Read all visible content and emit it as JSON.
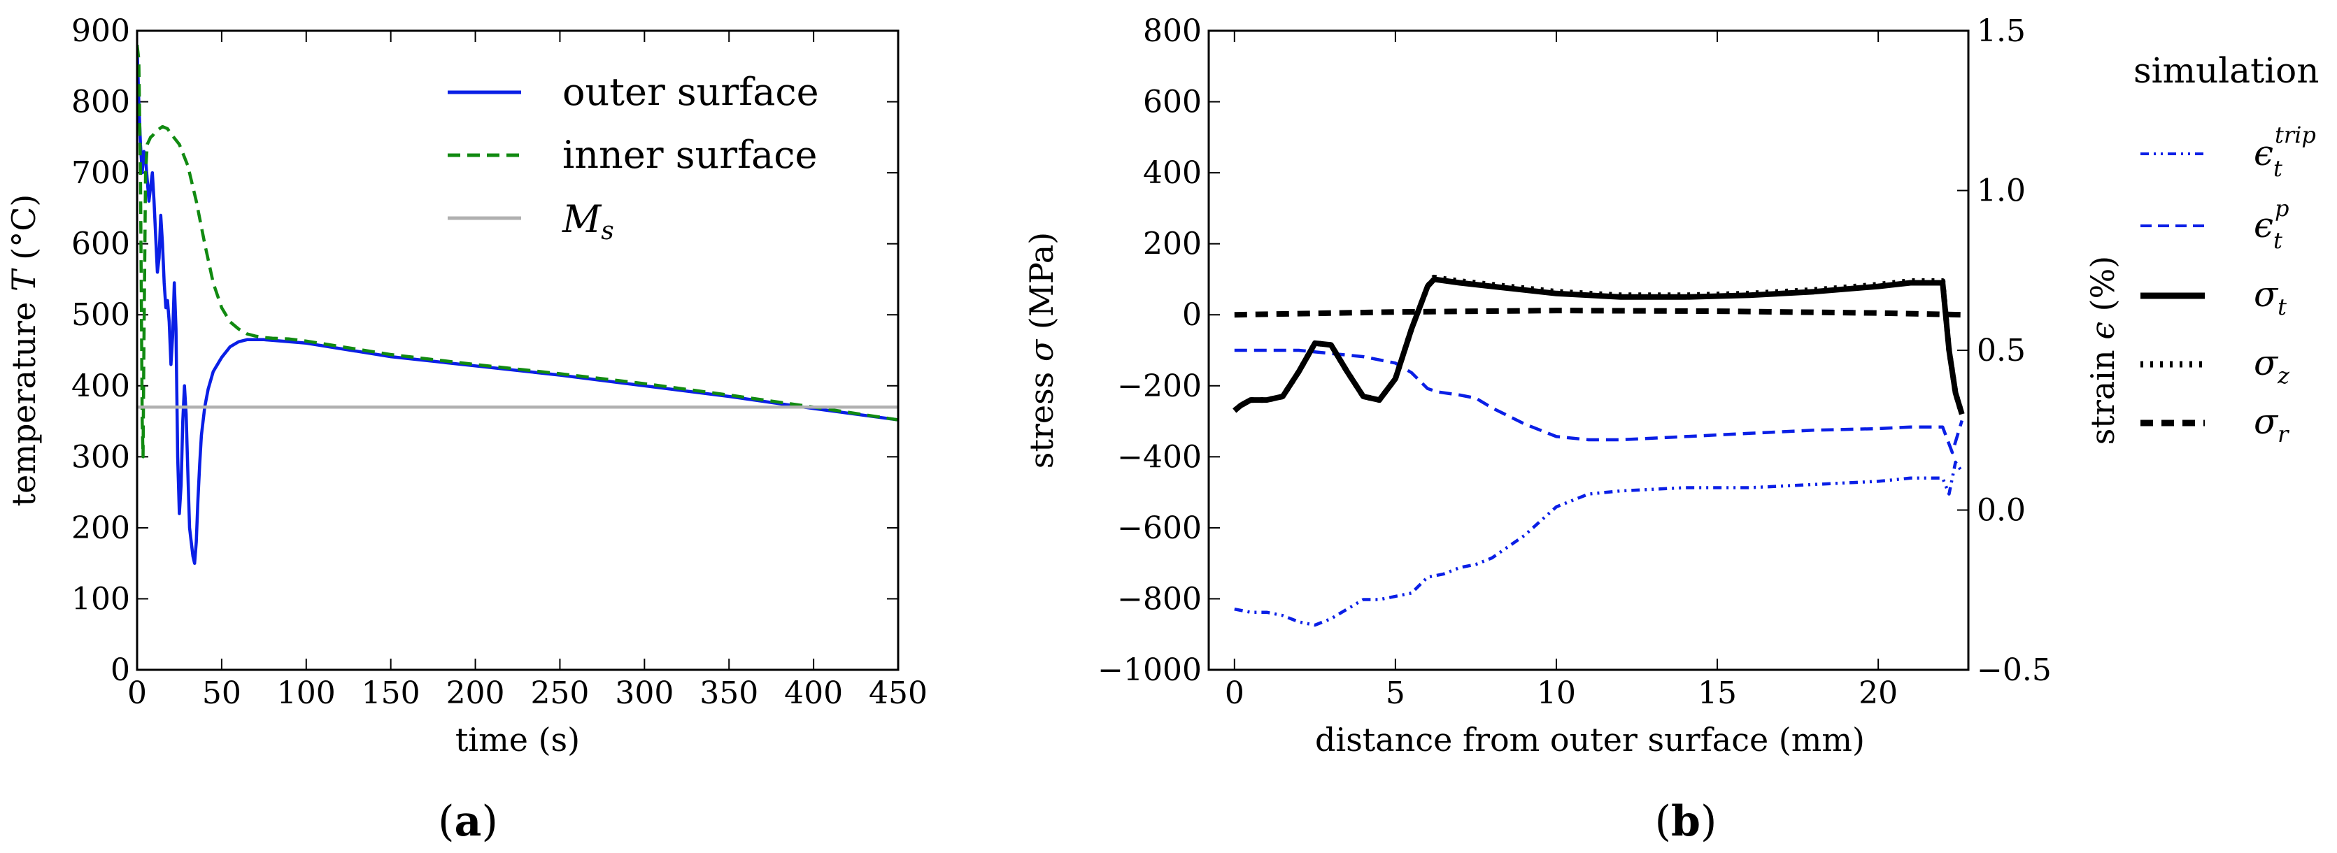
{
  "chart_data": [
    {
      "type": "line",
      "panel": "(a)",
      "panel_letter": "a",
      "xlabel": "time (s)",
      "ylabel_prefix": "temperature ",
      "ylabel_var": "T",
      "ylabel_suffix": " (°C)",
      "xlim": [
        0,
        450
      ],
      "ylim": [
        0,
        900
      ],
      "xticks": [
        "0",
        "50",
        "100",
        "150",
        "200",
        "250",
        "300",
        "350",
        "400",
        "450"
      ],
      "yticks": [
        "0",
        "100",
        "200",
        "300",
        "400",
        "500",
        "600",
        "700",
        "800",
        "900"
      ],
      "legend_position": "top-right",
      "series": [
        {
          "name": "outer surface",
          "color": "#0a1fe6",
          "style": "solid",
          "x": [
            0,
            1,
            2,
            3,
            4,
            5,
            6,
            7,
            8,
            9,
            10,
            11,
            12,
            13,
            14,
            15,
            16,
            17,
            18,
            19,
            20,
            21,
            22,
            23,
            24,
            25,
            26,
            27,
            28,
            29,
            30,
            31,
            32,
            33,
            34,
            35,
            36,
            37,
            38,
            40,
            42,
            45,
            50,
            55,
            60,
            65,
            70,
            75,
            80,
            90,
            100,
            150,
            200,
            250,
            300,
            350,
            400,
            450
          ],
          "y": [
            880,
            800,
            740,
            700,
            730,
            720,
            690,
            660,
            680,
            700,
            660,
            610,
            560,
            580,
            640,
            600,
            545,
            510,
            520,
            490,
            430,
            470,
            545,
            480,
            300,
            220,
            260,
            350,
            400,
            360,
            280,
            200,
            180,
            160,
            150,
            180,
            240,
            290,
            330,
            370,
            395,
            420,
            440,
            455,
            462,
            465,
            465,
            465,
            464,
            462,
            460,
            441,
            428,
            415,
            400,
            385,
            368,
            352
          ]
        },
        {
          "name": "inner surface",
          "color": "#118a11",
          "style": "dashed",
          "x": [
            0,
            1,
            2,
            3,
            3.5,
            4,
            5,
            6,
            7,
            8,
            9,
            10,
            12,
            15,
            18,
            20,
            25,
            30,
            35,
            40,
            45,
            50,
            55,
            60,
            65,
            70,
            75,
            80,
            90,
            100,
            150,
            200,
            250,
            300,
            350,
            400,
            450
          ],
          "y": [
            880,
            860,
            700,
            350,
            300,
            450,
            700,
            740,
            745,
            750,
            752,
            755,
            760,
            765,
            762,
            755,
            740,
            710,
            660,
            600,
            545,
            510,
            490,
            480,
            473,
            470,
            468,
            467,
            466,
            463,
            444,
            430,
            417,
            403,
            387,
            370,
            352
          ]
        },
        {
          "name": "M_s",
          "label_main": "M",
          "label_sub": "s",
          "color": "#b0b0b0",
          "style": "solid",
          "x": [
            0,
            450
          ],
          "y": [
            370,
            370
          ]
        }
      ]
    },
    {
      "type": "line",
      "panel": "(b)",
      "panel_letter": "b",
      "xlabel": "distance from outer surface (mm)",
      "ylabel_prefix": "stress ",
      "ylabel_var": "σ",
      "ylabel_suffix": " (MPa)",
      "y2label_prefix": "strain ",
      "y2label_var": "ϵ",
      "y2label_suffix": " (%)",
      "xlim": [
        -0.8,
        22.8
      ],
      "ylim": [
        -1000,
        800
      ],
      "y2lim": [
        -0.5,
        1.5
      ],
      "xticks": [
        "0",
        "5",
        "10",
        "15",
        "20"
      ],
      "yticks": [
        "−1000",
        "−800",
        "−600",
        "−400",
        "−200",
        "0",
        "200",
        "400",
        "600",
        "800"
      ],
      "y2ticks": [
        "−0.5",
        "0.0",
        "0.5",
        "1.0",
        "1.5"
      ],
      "legend_title": "simulation",
      "legend_position": "outside-right",
      "series": [
        {
          "name": "epsilon_t^trip",
          "label_main": "ϵ",
          "label_sub": "t",
          "label_sup": "trip",
          "axis": "right",
          "color": "#0a1fe6",
          "style": "dashdotdot",
          "x": [
            0,
            0.5,
            1,
            1.5,
            2,
            2.5,
            3,
            3.5,
            4,
            4.5,
            5,
            5.5,
            6,
            6.5,
            7,
            7.5,
            8,
            9,
            10,
            11,
            12,
            14,
            16,
            18,
            20,
            21,
            22,
            22.2,
            22.4,
            22.6
          ],
          "y": [
            -0.31,
            -0.32,
            -0.32,
            -0.33,
            -0.35,
            -0.36,
            -0.34,
            -0.31,
            -0.28,
            -0.28,
            -0.27,
            -0.26,
            -0.21,
            -0.2,
            -0.18,
            -0.17,
            -0.15,
            -0.08,
            0.01,
            0.05,
            0.06,
            0.07,
            0.07,
            0.08,
            0.09,
            0.1,
            0.1,
            0.05,
            0.15,
            0.12
          ]
        },
        {
          "name": "epsilon_t^p",
          "label_main": "ϵ",
          "label_sub": "t",
          "label_sup": "p",
          "axis": "right",
          "color": "#0a1fe6",
          "style": "dashed",
          "x": [
            0,
            1,
            2,
            3,
            4,
            5,
            5.5,
            6,
            6.3,
            7,
            7.5,
            8,
            9,
            10,
            11,
            12,
            14,
            16,
            18,
            20,
            21,
            22,
            22.3,
            22.6
          ],
          "y": [
            0.5,
            0.5,
            0.5,
            0.49,
            0.48,
            0.46,
            0.43,
            0.38,
            0.37,
            0.36,
            0.35,
            0.32,
            0.27,
            0.23,
            0.22,
            0.22,
            0.23,
            0.24,
            0.25,
            0.255,
            0.26,
            0.26,
            0.18,
            0.28
          ]
        },
        {
          "name": "sigma_t",
          "label_main": "σ",
          "label_sub": "t",
          "axis": "left",
          "color": "#000000",
          "style": "solid",
          "x": [
            0,
            0.2,
            0.5,
            1,
            1.5,
            2,
            2.5,
            3,
            3.5,
            4,
            4.5,
            5,
            5.5,
            6,
            6.2,
            7,
            8,
            10,
            12,
            14,
            16,
            18,
            20,
            21,
            22,
            22.2,
            22.4,
            22.6
          ],
          "y": [
            -270,
            -255,
            -240,
            -240,
            -230,
            -160,
            -80,
            -85,
            -160,
            -230,
            -240,
            -180,
            -40,
            80,
            100,
            90,
            80,
            60,
            50,
            50,
            55,
            65,
            80,
            90,
            90,
            -100,
            -220,
            -280
          ]
        },
        {
          "name": "sigma_z",
          "label_main": "σ",
          "label_sub": "z",
          "axis": "left",
          "color": "#000000",
          "style": "dotted",
          "x": [
            0,
            0.2,
            0.5,
            1,
            1.5,
            2,
            2.5,
            3,
            3.5,
            4,
            4.5,
            5,
            5.5,
            6,
            6.2,
            7,
            8,
            10,
            12,
            14,
            16,
            18,
            20,
            21,
            22,
            22.2,
            22.4,
            22.6
          ],
          "y": [
            -270,
            -255,
            -240,
            -240,
            -230,
            -160,
            -80,
            -85,
            -160,
            -230,
            -240,
            -180,
            -40,
            80,
            105,
            95,
            85,
            65,
            55,
            55,
            60,
            70,
            85,
            95,
            95,
            -100,
            -220,
            -280
          ]
        },
        {
          "name": "sigma_r",
          "label_main": "σ",
          "label_sub": "r",
          "axis": "left",
          "color": "#000000",
          "style": "dashed",
          "x": [
            0,
            5,
            10,
            15,
            20,
            22.6
          ],
          "y": [
            0,
            8,
            12,
            10,
            5,
            0
          ]
        }
      ]
    }
  ]
}
